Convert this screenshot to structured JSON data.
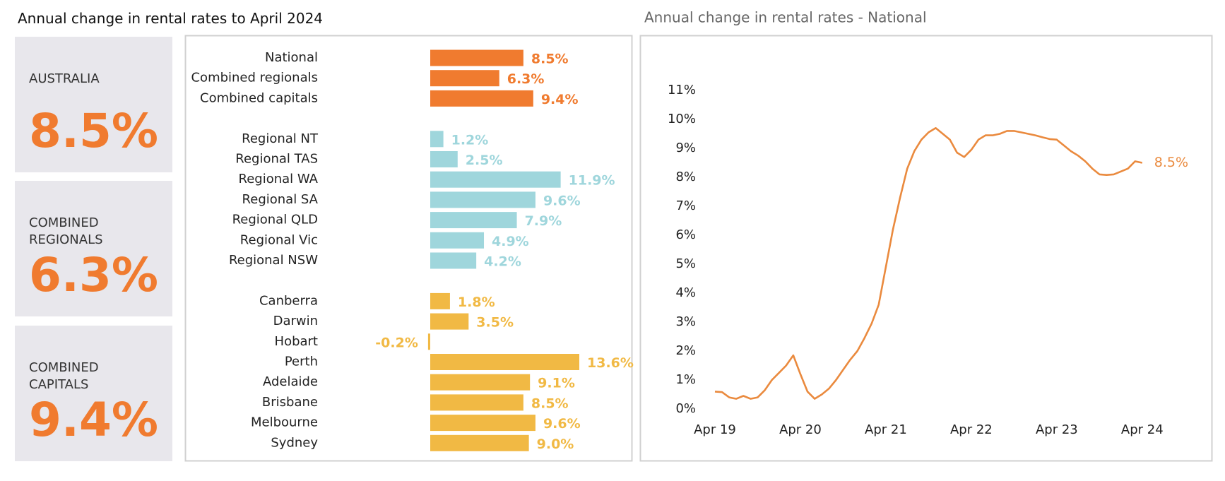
{
  "title": "Annual change in rental rates to April 2024",
  "kpis": [
    {
      "label": "AUSTRALIA",
      "value": "8.5%"
    },
    {
      "label": "COMBINED REGIONALS",
      "value": "6.3%"
    },
    {
      "label": "COMBINED CAPITALS",
      "value": "9.4%"
    }
  ],
  "chart_data": [
    {
      "type": "hbar",
      "categories": [
        "National",
        "Combined regionals",
        "Combined capitals",
        null,
        "Regional NT",
        "Regional TAS",
        "Regional WA",
        "Regional SA",
        "Regional QLD",
        "Regional Vic",
        "Regional NSW",
        null,
        "Canberra",
        "Darwin",
        "Hobart",
        "Perth",
        "Adelaide",
        "Brisbane",
        "Melbourne",
        "Sydney"
      ],
      "values": [
        8.5,
        6.3,
        9.4,
        null,
        1.2,
        2.5,
        11.9,
        9.6,
        7.9,
        4.9,
        4.2,
        null,
        1.8,
        3.5,
        -0.2,
        13.6,
        9.1,
        8.5,
        9.6,
        9.0
      ],
      "value_labels": [
        "8.5%",
        "6.3%",
        "9.4%",
        null,
        "1.2%",
        "2.5%",
        "11.9%",
        "9.6%",
        "7.9%",
        "4.9%",
        "4.2%",
        null,
        "1.8%",
        "3.5%",
        "-0.2%",
        "13.6%",
        "9.1%",
        "8.5%",
        "9.6%",
        "9.0%"
      ],
      "colors": [
        "#f07b2f",
        "#f07b2f",
        "#f07b2f",
        null,
        "#9fd6dc",
        "#9fd6dc",
        "#9fd6dc",
        "#9fd6dc",
        "#9fd6dc",
        "#9fd6dc",
        "#9fd6dc",
        null,
        "#f1b944",
        "#f1b944",
        "#f1b944",
        "#f1b944",
        "#f1b944",
        "#f1b944",
        "#f1b944",
        "#f1b944"
      ]
    },
    {
      "type": "line",
      "title": "Annual change in rental rates - National",
      "color": "#ea8a3e",
      "x": [
        "2019-04",
        "2019-05",
        "2019-06",
        "2019-07",
        "2019-08",
        "2019-09",
        "2019-10",
        "2019-11",
        "2019-12",
        "2020-01",
        "2020-02",
        "2020-03",
        "2020-04",
        "2020-05",
        "2020-06",
        "2020-07",
        "2020-08",
        "2020-09",
        "2020-10",
        "2020-11",
        "2020-12",
        "2021-01",
        "2021-02",
        "2021-03",
        "2021-04",
        "2021-05",
        "2021-06",
        "2021-07",
        "2021-08",
        "2021-09",
        "2021-10",
        "2021-11",
        "2021-12",
        "2022-01",
        "2022-02",
        "2022-03",
        "2022-04",
        "2022-05",
        "2022-06",
        "2022-07",
        "2022-08",
        "2022-09",
        "2022-10",
        "2022-11",
        "2022-12",
        "2023-01",
        "2023-02",
        "2023-03",
        "2023-04",
        "2023-05",
        "2023-06",
        "2023-07",
        "2023-08",
        "2023-09",
        "2023-10",
        "2023-11",
        "2023-12",
        "2024-01",
        "2024-02",
        "2024-03",
        "2024-04"
      ],
      "values": [
        0.6,
        0.58,
        0.4,
        0.35,
        0.45,
        0.35,
        0.4,
        0.65,
        1.0,
        1.25,
        1.5,
        1.85,
        1.2,
        0.6,
        0.35,
        0.5,
        0.7,
        1.0,
        1.35,
        1.7,
        2.0,
        2.45,
        2.95,
        3.6,
        4.9,
        6.2,
        7.3,
        8.3,
        8.9,
        9.3,
        9.55,
        9.7,
        9.5,
        9.3,
        8.85,
        8.7,
        8.95,
        9.3,
        9.45,
        9.45,
        9.5,
        9.6,
        9.6,
        9.55,
        9.5,
        9.45,
        9.38,
        9.32,
        9.3,
        9.1,
        8.9,
        8.75,
        8.55,
        8.3,
        8.1,
        8.08,
        8.1,
        8.2,
        8.3,
        8.55,
        8.5
      ],
      "end_label": "8.5%",
      "ylim": [
        0,
        11
      ],
      "yticks": [
        {
          "value": 0,
          "label": "0%"
        },
        {
          "value": 1,
          "label": "1%"
        },
        {
          "value": 2,
          "label": "2%"
        },
        {
          "value": 3,
          "label": "3%"
        },
        {
          "value": 4,
          "label": "4%"
        },
        {
          "value": 5,
          "label": "5%"
        },
        {
          "value": 6,
          "label": "6%"
        },
        {
          "value": 7,
          "label": "7%"
        },
        {
          "value": 8,
          "label": "8%"
        },
        {
          "value": 9,
          "label": "9%"
        },
        {
          "value": 10,
          "label": "10%"
        },
        {
          "value": 11,
          "label": "11%"
        }
      ],
      "xticks": [
        {
          "value": "2019-04",
          "label": "Apr 19"
        },
        {
          "value": "2020-04",
          "label": "Apr 20"
        },
        {
          "value": "2021-04",
          "label": "Apr 21"
        },
        {
          "value": "2022-04",
          "label": "Apr 22"
        },
        {
          "value": "2023-04",
          "label": "Apr 23"
        },
        {
          "value": "2024-04",
          "label": "Apr 24"
        }
      ]
    }
  ]
}
